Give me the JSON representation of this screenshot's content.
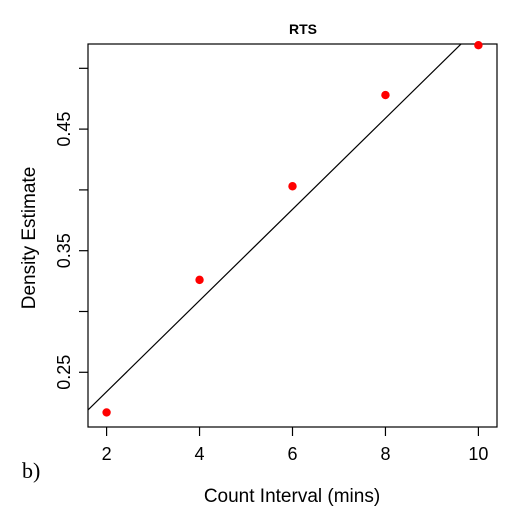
{
  "chart_data": {
    "type": "scatter",
    "title": "RTS",
    "xlabel": "Count Interval (mins)",
    "ylabel": "Density Estimate",
    "panel_label": "b)",
    "xlim": [
      1.6,
      10.4
    ],
    "ylim": [
      0.205,
      0.52
    ],
    "x_ticks": [
      2,
      4,
      6,
      8,
      10
    ],
    "y_ticks": [
      0.25,
      0.35,
      0.45
    ],
    "x_tick_labels": [
      "2",
      "4",
      "6",
      "8",
      "10"
    ],
    "y_tick_labels": [
      "0.25",
      "0.35",
      "0.45"
    ],
    "y_minor_ticks": [
      0.3,
      0.4,
      0.5
    ],
    "series": [
      {
        "x": [
          2,
          4,
          6,
          8,
          10
        ],
        "y": [
          0.217,
          0.326,
          0.403,
          0.478,
          0.519
        ],
        "color": "#ff0000"
      }
    ],
    "fit_line": {
      "slope": 0.0375,
      "intercept": 0.159,
      "color": "#000000"
    },
    "grid": false,
    "legend": "none"
  }
}
